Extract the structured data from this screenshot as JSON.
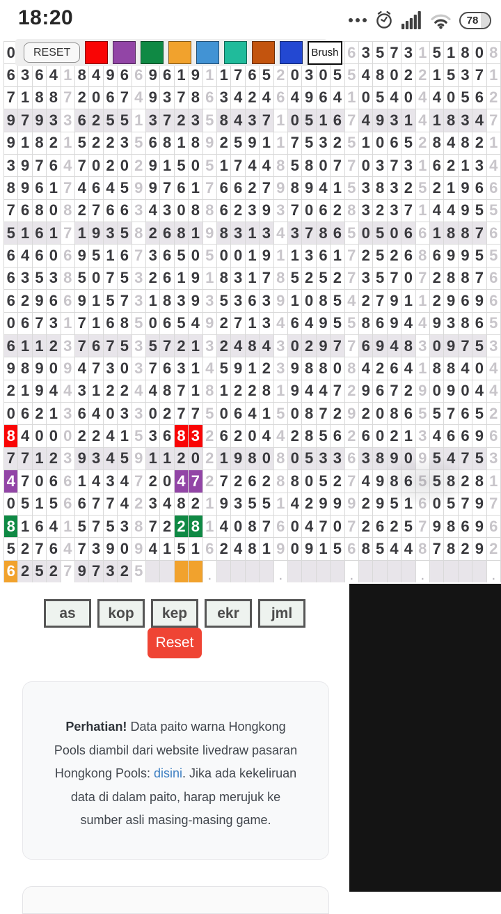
{
  "status_bar": {
    "time": "18:20",
    "battery_level": "78",
    "icons": [
      "more-dots",
      "alarm-clock",
      "cellular-signal",
      "wifi",
      "battery"
    ]
  },
  "toolbar": {
    "reset_label": "RESET",
    "brush_label": "Brush",
    "swatches": [
      {
        "name": "red",
        "color": "#f90505"
      },
      {
        "name": "purple",
        "color": "#9245a6"
      },
      {
        "name": "green",
        "color": "#0f8944"
      },
      {
        "name": "orange",
        "color": "#f1a22d"
      },
      {
        "name": "light-blue",
        "color": "#4293d4"
      },
      {
        "name": "teal",
        "color": "#20bb9b"
      },
      {
        "name": "brown",
        "color": "#c3540e"
      },
      {
        "name": "blue",
        "color": "#2348d2"
      }
    ]
  },
  "grid": {
    "columns": 35,
    "group_size": 5,
    "rows": [
      "0                     0663573151808",
      "63641849669619117652030554802215371",
      "71887206749378634246496410540440562",
      "97933625513723584371051674931418347",
      "91821522356818925911753251065284821",
      "39764702029150517448580770373162134",
      "89617464599761766279894153832521966",
      "76808276634308862393706283237144955",
      "51617193582681983134378650506618876",
      "64606951673650500191136172526869955",
      "63538507532619183178525273570728876",
      "62966915731839353639108542791129696",
      "06731716850654927134649558694493865",
      "61123767535721324843029776948309753",
      "98909473037631459123988084264188404",
      "21944312244871812281944729672909044",
      "06213640330277506415087292086557652",
      "84000224153683262044285626021346696",
      "77123934591120219808053363890954753",
      "47066143472047272628805274986558281",
      "05156677423482193551429992951605797",
      "81641575387228140876047072625798696",
      "52764739094151624819091568544878292",
      "6252797325    .    .    .    .    ."
    ],
    "highlighted_rows": [
      4,
      9,
      14,
      19,
      24
    ],
    "painted_cells": [
      {
        "row": 18,
        "col": 1,
        "color": "red"
      },
      {
        "row": 18,
        "col": 13,
        "color": "red"
      },
      {
        "row": 18,
        "col": 14,
        "color": "red"
      },
      {
        "row": 20,
        "col": 1,
        "color": "purple"
      },
      {
        "row": 20,
        "col": 13,
        "color": "purple"
      },
      {
        "row": 20,
        "col": 14,
        "color": "purple"
      },
      {
        "row": 22,
        "col": 1,
        "color": "green"
      },
      {
        "row": 22,
        "col": 13,
        "color": "green"
      },
      {
        "row": 22,
        "col": 14,
        "color": "green"
      },
      {
        "row": 24,
        "col": 1,
        "color": "orange"
      },
      {
        "row": 24,
        "col": 13,
        "color": "orange"
      },
      {
        "row": 24,
        "col": 14,
        "color": "orange"
      }
    ],
    "paint_colors": {
      "red": "#f90505",
      "purple": "#9245a6",
      "green": "#0f8944",
      "orange": "#f1a22d"
    },
    "colors": {
      "digit": "#39393d",
      "jml_digit": "#c8c5ca",
      "row_highlight": "#e8e5ea",
      "cell_border": "#d9d9d9"
    }
  },
  "filters": {
    "buttons": [
      "as",
      "kop",
      "kep",
      "ekr",
      "jml"
    ],
    "reset_label": "Reset",
    "reset_color": "#ef4434"
  },
  "notice": {
    "bold_lead": "Perhatian!",
    "text_before_link": " Data paito warna Hongkong Pools diambil dari website livedraw pasaran Hongkong Pools: ",
    "link_text": "disini",
    "text_after_link": ". Jika ada kekeliruan data di dalam paito, harap merujuk ke sumber asli masing-masing game.",
    "link_color": "#3d7fc2"
  },
  "colors": {
    "side_panel": "#141414",
    "toolbar_background": "#efefef",
    "filter_button_background": "#eef3ef"
  }
}
